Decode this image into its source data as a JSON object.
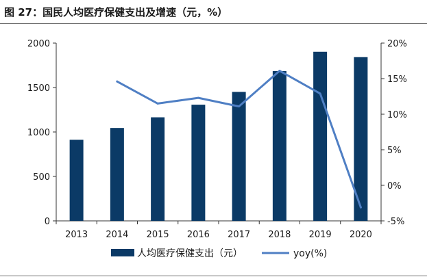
{
  "title": "图 27：国民人均医疗保健支出及增速（元，%）",
  "chart_data": {
    "type": "bar",
    "categories": [
      "2013",
      "2014",
      "2015",
      "2016",
      "2017",
      "2018",
      "2019",
      "2020"
    ],
    "series": [
      {
        "name": "人均医疗保健支出（元）",
        "type": "bar",
        "axis": "left",
        "values": [
          912,
          1045,
          1165,
          1307,
          1451,
          1685,
          1902,
          1843
        ]
      },
      {
        "name": "yoy(%)",
        "type": "line",
        "axis": "right",
        "values": [
          null,
          14.6,
          11.5,
          12.3,
          11.1,
          16.1,
          12.9,
          -3.1
        ]
      }
    ],
    "ylim_left": [
      0,
      2000
    ],
    "yticks_left": [
      "0",
      "500",
      "1000",
      "1500",
      "2000"
    ],
    "ylim_right": [
      -5,
      20
    ],
    "yticks_right": [
      "-5%",
      "0%",
      "5%",
      "10%",
      "15%",
      "20%"
    ],
    "grid": false,
    "legend_position": "bottom",
    "colors": {
      "bar": "#0b3a66",
      "line": "#4f7fc4"
    }
  }
}
